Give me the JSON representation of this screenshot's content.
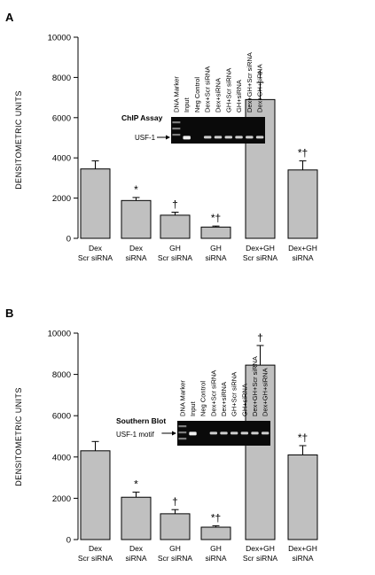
{
  "chart_data": [
    {
      "type": "bar",
      "panel": "A",
      "ylabel": "DENSITOMETRIC UNITS",
      "ylim": [
        0,
        10000
      ],
      "yticks": [
        "0",
        "2000",
        "4000",
        "6000",
        "8000",
        "10000"
      ],
      "categories": [
        [
          "Dex",
          "Scr siRNA"
        ],
        [
          "Dex",
          "siRNA"
        ],
        [
          "GH",
          "Scr siRNA"
        ],
        [
          "GH",
          "siRNA"
        ],
        [
          "Dex+GH",
          "Scr siRNA"
        ],
        [
          "Dex+GH",
          "siRNA"
        ]
      ],
      "values": [
        3450,
        1880,
        1150,
        560,
        6900,
        3400
      ],
      "errors": [
        400,
        150,
        150,
        50,
        850,
        450
      ],
      "marks": [
        "",
        "*",
        "†",
        "*†",
        "†",
        "*†"
      ],
      "bar_color": "#c0c0c0",
      "inset": {
        "title": "ChIP Assay",
        "band_label": "USF-1",
        "lanes": [
          "DNA Marker",
          "Input",
          "Neg Control",
          "Dex+Scr siRNA",
          "Dex+siRNA",
          "GH+Scr siRNA",
          "GH+siRNA",
          "Dex+GH+Scr siRNA",
          "Dex+GH+siRNA"
        ]
      }
    },
    {
      "type": "bar",
      "panel": "B",
      "ylabel": "DENSITOMETRIC UNITS",
      "ylim": [
        0,
        10000
      ],
      "yticks": [
        "0",
        "2000",
        "4000",
        "6000",
        "8000",
        "10000"
      ],
      "categories": [
        [
          "Dex",
          "Scr siRNA"
        ],
        [
          "Dex",
          "siRNA"
        ],
        [
          "GH",
          "Scr siRNA"
        ],
        [
          "GH",
          "siRNA"
        ],
        [
          "Dex+GH",
          "Scr siRNA"
        ],
        [
          "Dex+GH",
          "siRNA"
        ]
      ],
      "values": [
        4300,
        2050,
        1250,
        600,
        8450,
        4100
      ],
      "errors": [
        450,
        250,
        200,
        70,
        950,
        450
      ],
      "marks": [
        "",
        "*",
        "†",
        "*†",
        "†",
        "*†"
      ],
      "bar_color": "#c0c0c0",
      "inset": {
        "title": "Southern Blot",
        "band_label": "USF-1 motif",
        "lanes": [
          "DNA Marker",
          "Input",
          "Neg Control",
          "Dex+Scr siRNA",
          "Dex+siRNA",
          "GH+Scr siRNA",
          "GH+siRNA",
          "Dex+GH+Scr siRNA",
          "Dex+GH+siRNA"
        ]
      }
    }
  ]
}
